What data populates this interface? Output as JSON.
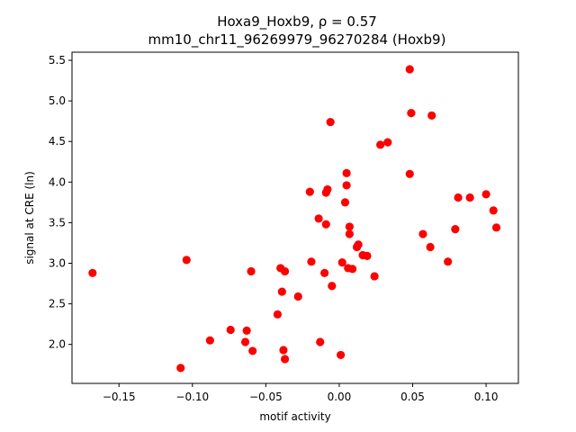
{
  "chart_data": {
    "type": "scatter",
    "title_line1": "Hoxa9_Hoxb9, ρ = 0.57",
    "title_line2": "mm10_chr11_96269979_96270284 (Hoxb9)",
    "xlabel": "motif activity",
    "ylabel": "signal at CRE (ln)",
    "xlim": [
      -0.182,
      0.122
    ],
    "ylim": [
      1.52,
      5.6
    ],
    "xticks": [
      -0.15,
      -0.1,
      -0.05,
      0.0,
      0.05,
      0.1
    ],
    "xtick_labels": [
      "−0.15",
      "−0.10",
      "−0.05",
      "0.00",
      "0.05",
      "0.10"
    ],
    "yticks": [
      2.0,
      2.5,
      3.0,
      3.5,
      4.0,
      4.5,
      5.0,
      5.5
    ],
    "ytick_labels": [
      "2.0",
      "2.5",
      "3.0",
      "3.5",
      "4.0",
      "4.5",
      "5.0",
      "5.5"
    ],
    "grid": false,
    "marker_color": "#ff0000",
    "points": [
      {
        "x": -0.168,
        "y": 2.88
      },
      {
        "x": -0.108,
        "y": 1.71
      },
      {
        "x": -0.104,
        "y": 3.04
      },
      {
        "x": -0.088,
        "y": 2.05
      },
      {
        "x": -0.074,
        "y": 2.18
      },
      {
        "x": -0.064,
        "y": 2.03
      },
      {
        "x": -0.063,
        "y": 2.17
      },
      {
        "x": -0.06,
        "y": 2.9
      },
      {
        "x": -0.059,
        "y": 1.92
      },
      {
        "x": -0.042,
        "y": 2.37
      },
      {
        "x": -0.04,
        "y": 2.94
      },
      {
        "x": -0.039,
        "y": 2.65
      },
      {
        "x": -0.038,
        "y": 1.93
      },
      {
        "x": -0.037,
        "y": 1.82
      },
      {
        "x": -0.037,
        "y": 2.9
      },
      {
        "x": -0.028,
        "y": 2.59
      },
      {
        "x": -0.02,
        "y": 3.88
      },
      {
        "x": -0.019,
        "y": 3.02
      },
      {
        "x": -0.014,
        "y": 3.55
      },
      {
        "x": -0.013,
        "y": 2.03
      },
      {
        "x": -0.01,
        "y": 2.88
      },
      {
        "x": -0.009,
        "y": 3.87
      },
      {
        "x": -0.009,
        "y": 3.48
      },
      {
        "x": -0.008,
        "y": 3.91
      },
      {
        "x": -0.006,
        "y": 4.74
      },
      {
        "x": -0.005,
        "y": 2.72
      },
      {
        "x": 0.001,
        "y": 1.87
      },
      {
        "x": 0.002,
        "y": 3.01
      },
      {
        "x": 0.004,
        "y": 3.75
      },
      {
        "x": 0.005,
        "y": 4.11
      },
      {
        "x": 0.005,
        "y": 3.96
      },
      {
        "x": 0.006,
        "y": 2.94
      },
      {
        "x": 0.007,
        "y": 3.45
      },
      {
        "x": 0.007,
        "y": 3.36
      },
      {
        "x": 0.009,
        "y": 2.93
      },
      {
        "x": 0.012,
        "y": 3.2
      },
      {
        "x": 0.013,
        "y": 3.23
      },
      {
        "x": 0.016,
        "y": 3.1
      },
      {
        "x": 0.019,
        "y": 3.09
      },
      {
        "x": 0.024,
        "y": 2.84
      },
      {
        "x": 0.028,
        "y": 4.46
      },
      {
        "x": 0.033,
        "y": 4.49
      },
      {
        "x": 0.048,
        "y": 5.39
      },
      {
        "x": 0.048,
        "y": 4.1
      },
      {
        "x": 0.049,
        "y": 4.85
      },
      {
        "x": 0.057,
        "y": 3.36
      },
      {
        "x": 0.062,
        "y": 3.2
      },
      {
        "x": 0.063,
        "y": 4.82
      },
      {
        "x": 0.074,
        "y": 3.02
      },
      {
        "x": 0.079,
        "y": 3.42
      },
      {
        "x": 0.081,
        "y": 3.81
      },
      {
        "x": 0.089,
        "y": 3.81
      },
      {
        "x": 0.1,
        "y": 3.85
      },
      {
        "x": 0.105,
        "y": 3.65
      },
      {
        "x": 0.107,
        "y": 3.44
      }
    ]
  }
}
